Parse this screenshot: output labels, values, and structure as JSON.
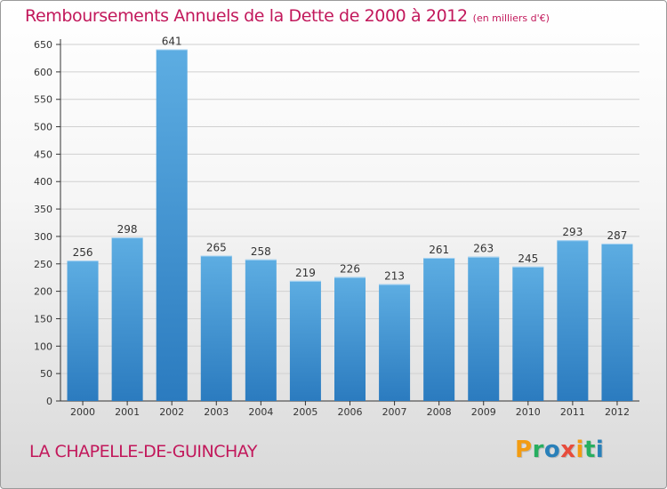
{
  "chart_data": {
    "type": "bar",
    "title": "Remboursements Annuels de la Dette de 2000 à 2012",
    "subtitle": "(en milliers d'€)",
    "categories": [
      "2000",
      "2001",
      "2002",
      "2003",
      "2004",
      "2005",
      "2006",
      "2007",
      "2008",
      "2009",
      "2010",
      "2011",
      "2012"
    ],
    "values": [
      256,
      298,
      641,
      265,
      258,
      219,
      226,
      213,
      261,
      263,
      245,
      293,
      287
    ],
    "data_labels": [
      "256",
      "298",
      "641",
      "265",
      "258",
      "219",
      "226",
      "213",
      "261",
      "263",
      "245",
      "293",
      "287"
    ],
    "ylim": [
      0,
      650
    ],
    "yticks": [
      0,
      50,
      100,
      150,
      200,
      250,
      300,
      350,
      400,
      450,
      500,
      550,
      600,
      650
    ],
    "ytick_labels": [
      "0",
      "50",
      "100",
      "150",
      "200",
      "250",
      "300",
      "350",
      "400",
      "450",
      "500",
      "550",
      "600",
      "650"
    ],
    "grid": true,
    "bar_color_light": "#5dade2",
    "bar_color_dark": "#2b7bbf"
  },
  "footer": {
    "commune": "LA CHAPELLE-DE-GUINCHAY",
    "logo_letters": [
      "P",
      "r",
      "o",
      "x",
      "i",
      "t",
      "i"
    ],
    "logo_colors": [
      "#f39c12",
      "#27ae60",
      "#2980b9",
      "#e74c3c",
      "#f39c12",
      "#27ae60",
      "#2980b9"
    ]
  },
  "colors": {
    "title": "#c2185b",
    "axis": "#333333",
    "grid": "#d0d0d0"
  }
}
